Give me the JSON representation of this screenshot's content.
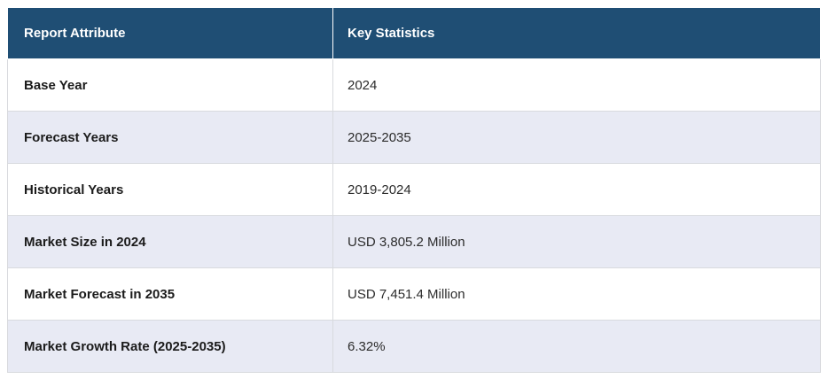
{
  "colors": {
    "header_bg": "#1f4e74",
    "header_text": "#ffffff",
    "row_bg": "#ffffff",
    "row_alt_bg": "#e8eaf4",
    "border": "#d8dade",
    "attr_text": "#1b1b1b",
    "value_text": "#2b2b2b"
  },
  "table": {
    "header": {
      "col1": "Report Attribute",
      "col2": "Key Statistics"
    },
    "rows": [
      {
        "attribute": "Base Year",
        "value": "2024"
      },
      {
        "attribute": "Forecast Years",
        "value": "2025-2035"
      },
      {
        "attribute": "Historical Years",
        "value": "2019-2024"
      },
      {
        "attribute": "Market Size in 2024",
        "value": "USD 3,805.2 Million"
      },
      {
        "attribute": "Market Forecast in 2035",
        "value": "USD 7,451.4 Million"
      },
      {
        "attribute": "Market Growth Rate (2025-2035)",
        "value": "6.32%"
      }
    ]
  },
  "chart_data": {
    "type": "table",
    "title": "",
    "columns": [
      "Report Attribute",
      "Key Statistics"
    ],
    "rows": [
      [
        "Base Year",
        "2024"
      ],
      [
        "Forecast Years",
        "2025-2035"
      ],
      [
        "Historical Years",
        "2019-2024"
      ],
      [
        "Market Size in 2024",
        "USD 3,805.2 Million"
      ],
      [
        "Market Forecast in 2035",
        "USD 7,451.4 Million"
      ],
      [
        "Market Growth Rate (2025-2035)",
        "6.32%"
      ]
    ]
  }
}
